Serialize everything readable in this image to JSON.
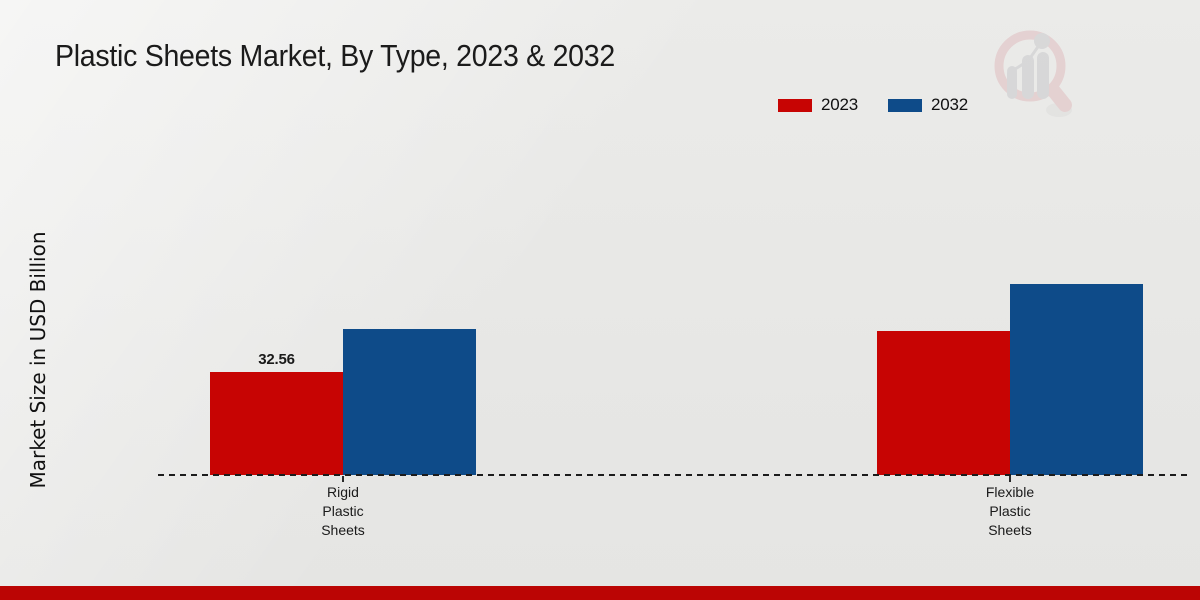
{
  "header": {
    "title": "Plastic Sheets Market, By Type, 2023 & 2032"
  },
  "legend": {
    "position": "top-right",
    "items": [
      {
        "label": "2023",
        "color": "#c70403"
      },
      {
        "label": "2032",
        "color": "#0e4b89"
      }
    ]
  },
  "chart_data": {
    "type": "bar",
    "title": "Plastic Sheets Market, By Type, 2023 & 2032",
    "ylabel": "Market Size in USD Billion",
    "categories": [
      "Rigid Plastic Sheets",
      "Flexible Plastic Sheets"
    ],
    "series": [
      {
        "name": "2023",
        "color": "#c70403",
        "values": [
          32.56,
          45.5
        ],
        "labels": [
          "32.56",
          ""
        ]
      },
      {
        "name": "2032",
        "color": "#0e4b89",
        "values": [
          46.2,
          60.4
        ],
        "labels": [
          "",
          ""
        ]
      }
    ],
    "axis": {
      "x_baseline_style": "dashed",
      "grid": false,
      "y_axis_ticks_shown": false
    },
    "legend_position": "top-right"
  },
  "branding": {
    "logo_icon": "magnifier-bar-chart-logo",
    "logo_ring_color": "#dfb9bc",
    "logo_bar_color": "#c6c6ca"
  },
  "footer": {
    "accent_color": "#bb0504"
  }
}
